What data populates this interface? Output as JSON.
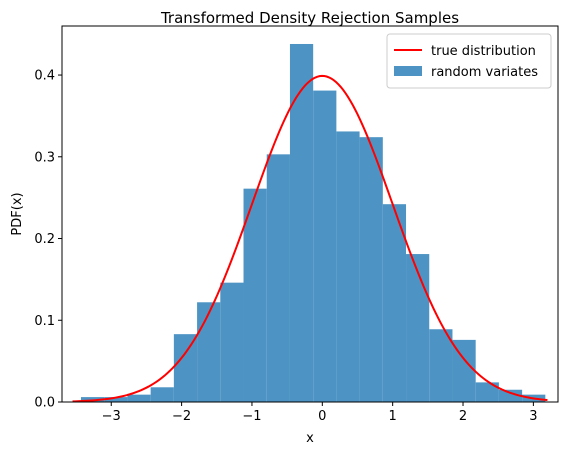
{
  "chart_data": {
    "type": "bar",
    "title": "Transformed Density Rejection Samples",
    "xlabel": "x",
    "ylabel": "PDF(x)",
    "xlim": [
      -3.7,
      3.35
    ],
    "ylim": [
      0,
      0.46
    ],
    "xticks": [
      -3,
      -2,
      -1,
      0,
      1,
      2,
      3
    ],
    "yticks": [
      0.0,
      0.1,
      0.2,
      0.3,
      0.4
    ],
    "grid": false,
    "legend_position": "top-right",
    "histogram": {
      "name": "random variates",
      "color": "#4d94c4",
      "bin_edges": [
        -3.43,
        -3.1,
        -2.77,
        -2.44,
        -2.11,
        -1.78,
        -1.45,
        -1.12,
        -0.79,
        -0.46,
        -0.13,
        0.2,
        0.53,
        0.86,
        1.19,
        1.52,
        1.85,
        2.18,
        2.51,
        2.84,
        3.17
      ],
      "values": [
        0.006,
        0.006,
        0.009,
        0.018,
        0.083,
        0.122,
        0.146,
        0.261,
        0.303,
        0.438,
        0.381,
        0.331,
        0.324,
        0.242,
        0.181,
        0.089,
        0.076,
        0.024,
        0.015,
        0.009
      ]
    },
    "curve": {
      "name": "true distribution",
      "color": "#ff0000",
      "distribution": "normal",
      "mean": 0,
      "std": 1,
      "x_range": [
        -3.55,
        3.2
      ]
    }
  }
}
